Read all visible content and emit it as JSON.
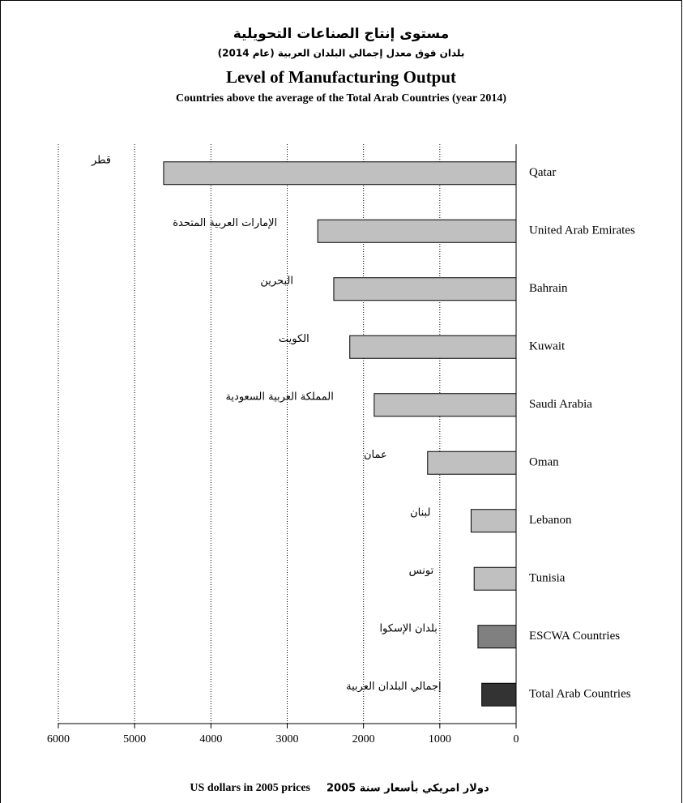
{
  "chart_data": {
    "type": "barh",
    "title_ar": "مستوى إنتاج الصناعات التحويلية",
    "subtitle_ar": "بلدان فوق معدل إجمالي البلدان العربية (عام 2014)",
    "title": "Level of Manufacturing Output",
    "subtitle": "Countries above the average of the Total Arab Countries (year 2014)",
    "categories": [
      "Qatar",
      "United Arab Emirates",
      "Bahrain",
      "Kuwait",
      "Saudi Arabia",
      "Oman",
      "Lebanon",
      "Tunisia",
      "ESCWA Countries",
      "Total Arab Countries"
    ],
    "categories_ar": [
      "قطر",
      "الإمارات العربية المتحدة",
      "البحرين",
      "الكويت",
      "المملكة العربية السعودية",
      "عمان",
      "لبنان",
      "تونس",
      "بلدان الإسكوا",
      "إجمالي البلدان العربية"
    ],
    "values": [
      4620,
      2600,
      2390,
      2180,
      1860,
      1160,
      590,
      550,
      500,
      450
    ],
    "colors": [
      "#c0c0c0",
      "#c0c0c0",
      "#c0c0c0",
      "#c0c0c0",
      "#c0c0c0",
      "#c0c0c0",
      "#c0c0c0",
      "#c0c0c0",
      "#808080",
      "#333333"
    ],
    "xlim": [
      0,
      6000
    ],
    "xticks": [
      0,
      1000,
      2000,
      3000,
      4000,
      5000,
      6000
    ],
    "x_reversed": true,
    "grid": true,
    "xlabel": "US dollars in 2005 prices",
    "xlabel_ar": "دولار امريكي بأسعار  سنة 2005"
  }
}
